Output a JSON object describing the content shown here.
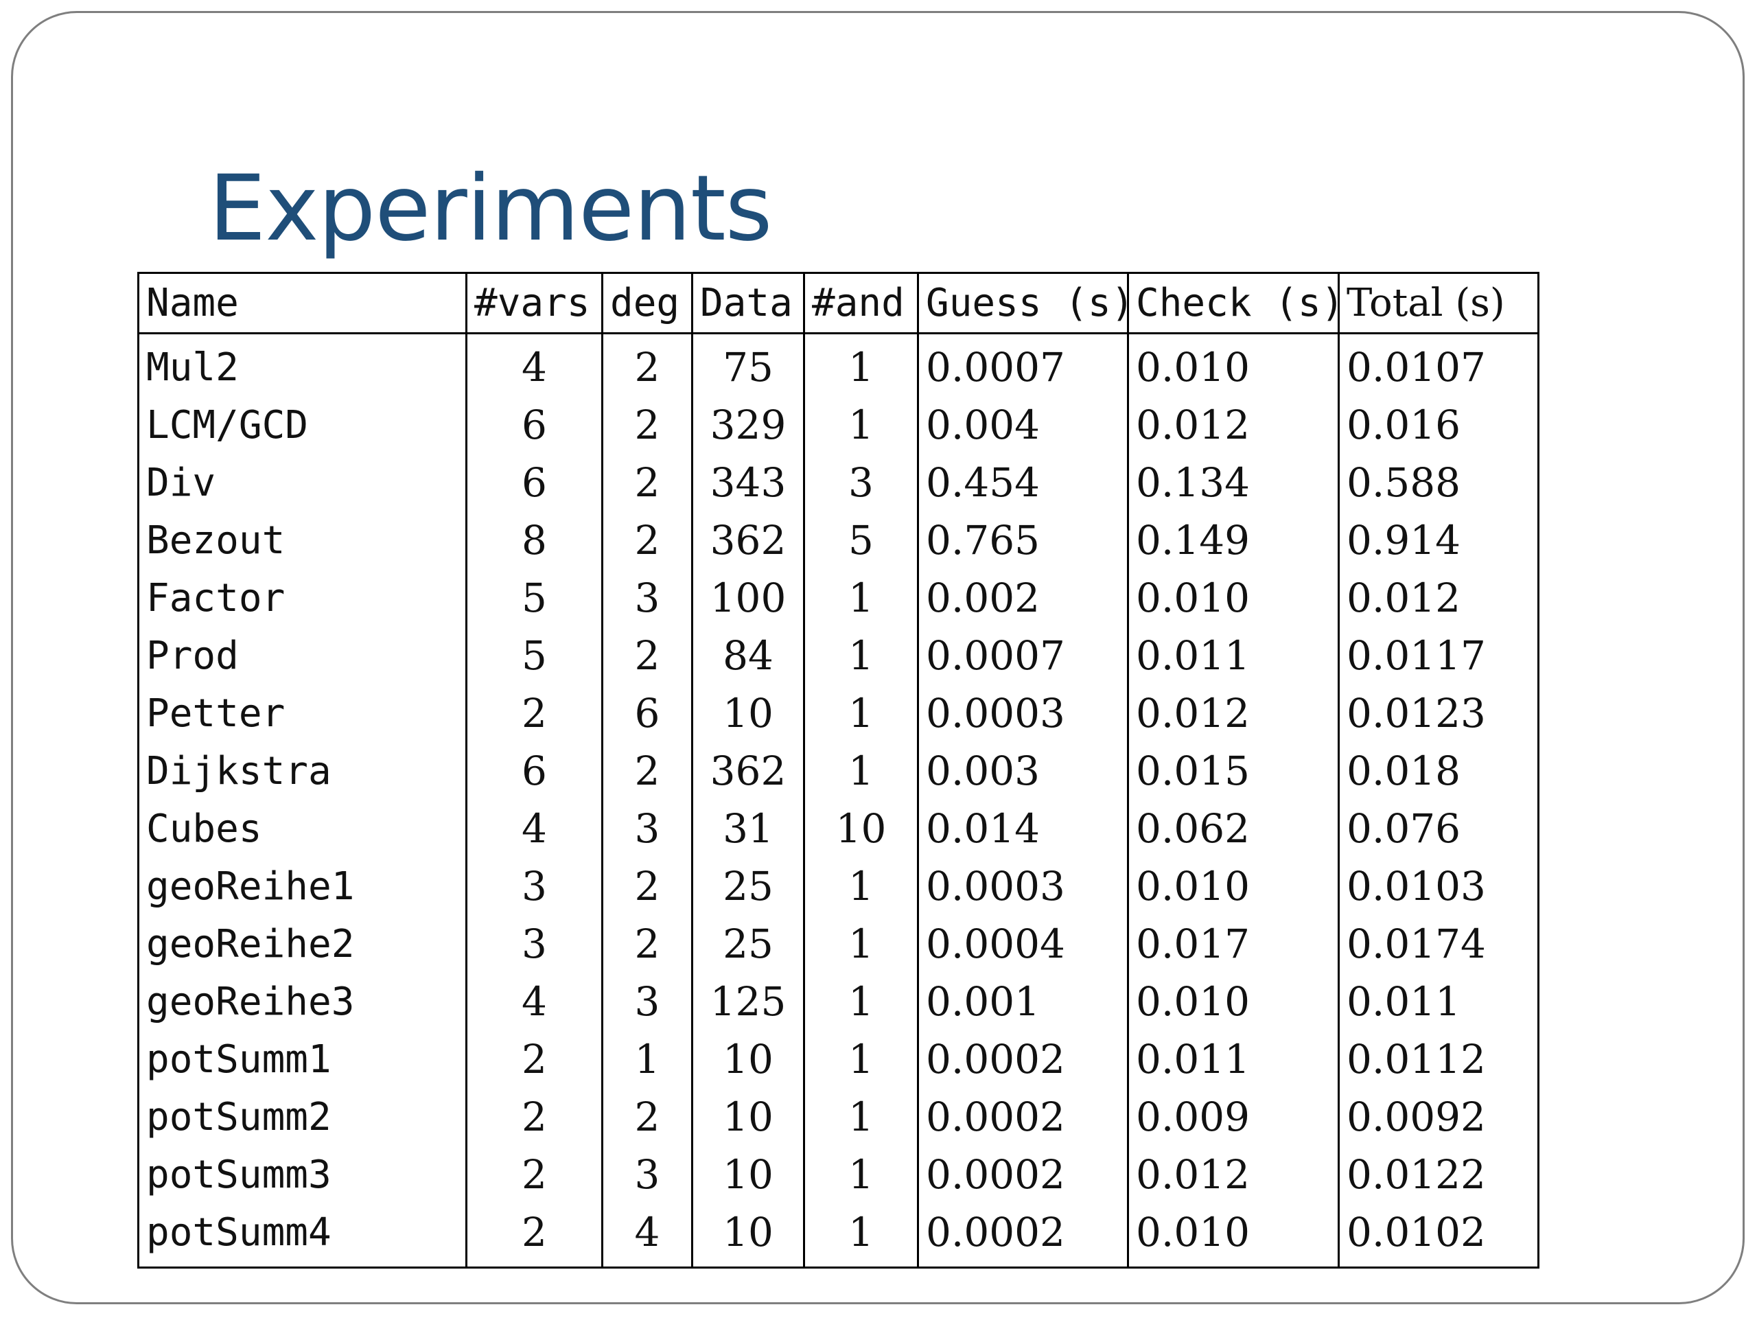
{
  "slide": {
    "title": "Experiments"
  },
  "table": {
    "headers": {
      "name": "Name",
      "vars": "#vars",
      "deg": "deg",
      "data": "Data",
      "and": "#and",
      "guess": "Guess (s)",
      "check": "Check (s)",
      "total": "Total (s)"
    },
    "rows": [
      {
        "name": "Mul2",
        "vars": "4",
        "deg": "2",
        "data": "75",
        "and": "1",
        "guess": "0.0007",
        "check": "0.010",
        "total": "0.0107"
      },
      {
        "name": "LCM/GCD",
        "vars": "6",
        "deg": "2",
        "data": "329",
        "and": "1",
        "guess": "0.004",
        "check": "0.012",
        "total": "0.016"
      },
      {
        "name": "Div",
        "vars": "6",
        "deg": "2",
        "data": "343",
        "and": "3",
        "guess": "0.454",
        "check": "0.134",
        "total": "0.588"
      },
      {
        "name": "Bezout",
        "vars": "8",
        "deg": "2",
        "data": "362",
        "and": "5",
        "guess": "0.765",
        "check": "0.149",
        "total": "0.914"
      },
      {
        "name": "Factor",
        "vars": "5",
        "deg": "3",
        "data": "100",
        "and": "1",
        "guess": "0.002",
        "check": "0.010",
        "total": "0.012"
      },
      {
        "name": "Prod",
        "vars": "5",
        "deg": "2",
        "data": "84",
        "and": "1",
        "guess": "0.0007",
        "check": "0.011",
        "total": "0.0117"
      },
      {
        "name": "Petter",
        "vars": "2",
        "deg": "6",
        "data": "10",
        "and": "1",
        "guess": "0.0003",
        "check": "0.012",
        "total": "0.0123"
      },
      {
        "name": "Dijkstra",
        "vars": "6",
        "deg": "2",
        "data": "362",
        "and": "1",
        "guess": "0.003",
        "check": "0.015",
        "total": "0.018"
      },
      {
        "name": "Cubes",
        "vars": "4",
        "deg": "3",
        "data": "31",
        "and": "10",
        "guess": "0.014",
        "check": "0.062",
        "total": "0.076"
      },
      {
        "name": "geoReihe1",
        "vars": "3",
        "deg": "2",
        "data": "25",
        "and": "1",
        "guess": "0.0003",
        "check": "0.010",
        "total": "0.0103"
      },
      {
        "name": "geoReihe2",
        "vars": "3",
        "deg": "2",
        "data": "25",
        "and": "1",
        "guess": "0.0004",
        "check": "0.017",
        "total": "0.0174"
      },
      {
        "name": "geoReihe3",
        "vars": "4",
        "deg": "3",
        "data": "125",
        "and": "1",
        "guess": "0.001",
        "check": "0.010",
        "total": "0.011"
      },
      {
        "name": "potSumm1",
        "vars": "2",
        "deg": "1",
        "data": "10",
        "and": "1",
        "guess": "0.0002",
        "check": "0.011",
        "total": "0.0112"
      },
      {
        "name": "potSumm2",
        "vars": "2",
        "deg": "2",
        "data": "10",
        "and": "1",
        "guess": "0.0002",
        "check": "0.009",
        "total": "0.0092"
      },
      {
        "name": "potSumm3",
        "vars": "2",
        "deg": "3",
        "data": "10",
        "and": "1",
        "guess": "0.0002",
        "check": "0.012",
        "total": "0.0122"
      },
      {
        "name": "potSumm4",
        "vars": "2",
        "deg": "4",
        "data": "10",
        "and": "1",
        "guess": "0.0002",
        "check": "0.010",
        "total": "0.0102"
      }
    ]
  },
  "colors": {
    "title": "#1f4e79",
    "slide_border": "#7f7f7f",
    "table_border": "#000000"
  }
}
